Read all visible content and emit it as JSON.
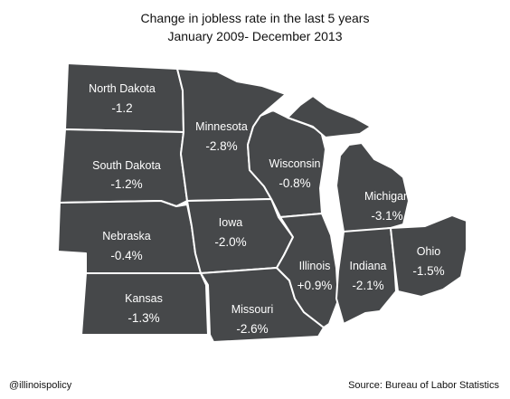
{
  "title": {
    "line1": "Change in jobless rate in the last 5 years",
    "line2": "January 2009- December 2013"
  },
  "map_fill_color": "#46484a",
  "border_color": "#ffffff",
  "states": {
    "north_dakota": {
      "name": "North Dakota",
      "value": "-1.2"
    },
    "south_dakota": {
      "name": "South Dakota",
      "value": "-1.2%"
    },
    "nebraska": {
      "name": "Nebraska",
      "value": "-0.4%"
    },
    "kansas": {
      "name": "Kansas",
      "value": "-1.3%"
    },
    "minnesota": {
      "name": "Minnesota",
      "value": "-2.8%"
    },
    "iowa": {
      "name": "Iowa",
      "value": "-2.0%"
    },
    "missouri": {
      "name": "Missouri",
      "value": "-2.6%"
    },
    "wisconsin": {
      "name": "Wisconsin",
      "value": "-0.8%"
    },
    "illinois": {
      "name": "Illinois",
      "value": "+0.9%"
    },
    "michigan": {
      "name": "Michigan",
      "value": "-3.1%"
    },
    "indiana": {
      "name": "Indiana",
      "value": "-2.1%"
    },
    "ohio": {
      "name": "Ohio",
      "value": "-1.5%"
    }
  },
  "footer": {
    "handle": "@illinoispolicy",
    "source": "Source: Bureau of Labor Statistics"
  }
}
